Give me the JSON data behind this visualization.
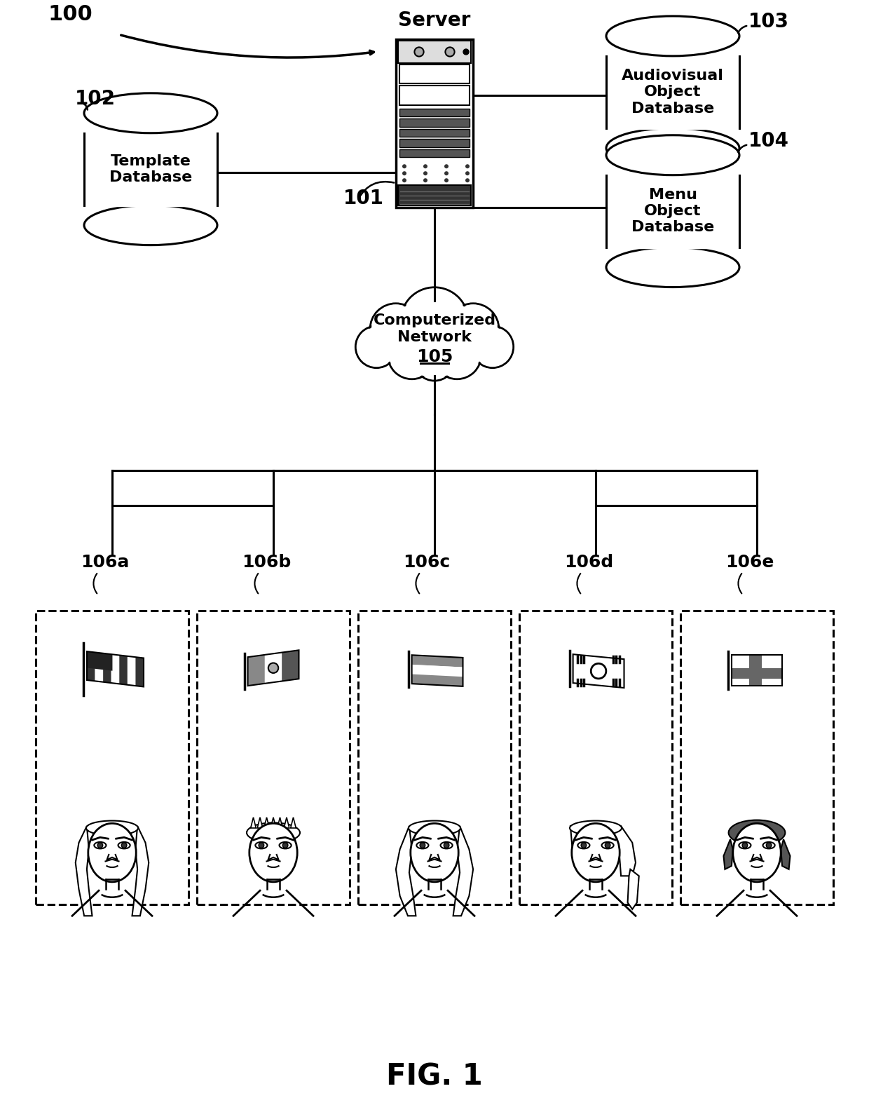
{
  "title": "FIG. 1",
  "bg_color": "#ffffff",
  "label_100": "100",
  "label_101": "101",
  "label_102": "102",
  "label_103": "103",
  "label_104": "104",
  "label_105": "105",
  "labels_106": [
    "106a",
    "106b",
    "106c",
    "106d",
    "106e"
  ],
  "server_label": "Server",
  "db1_label": "Audiovisual\nObject\nDatabase",
  "db2_label": "Template\nDatabase",
  "db3_label": "Menu\nObject\nDatabase",
  "cloud_label": "Computerized\nNetwork",
  "cloud_sublabel": "105",
  "fig_label": "FIG. 1"
}
